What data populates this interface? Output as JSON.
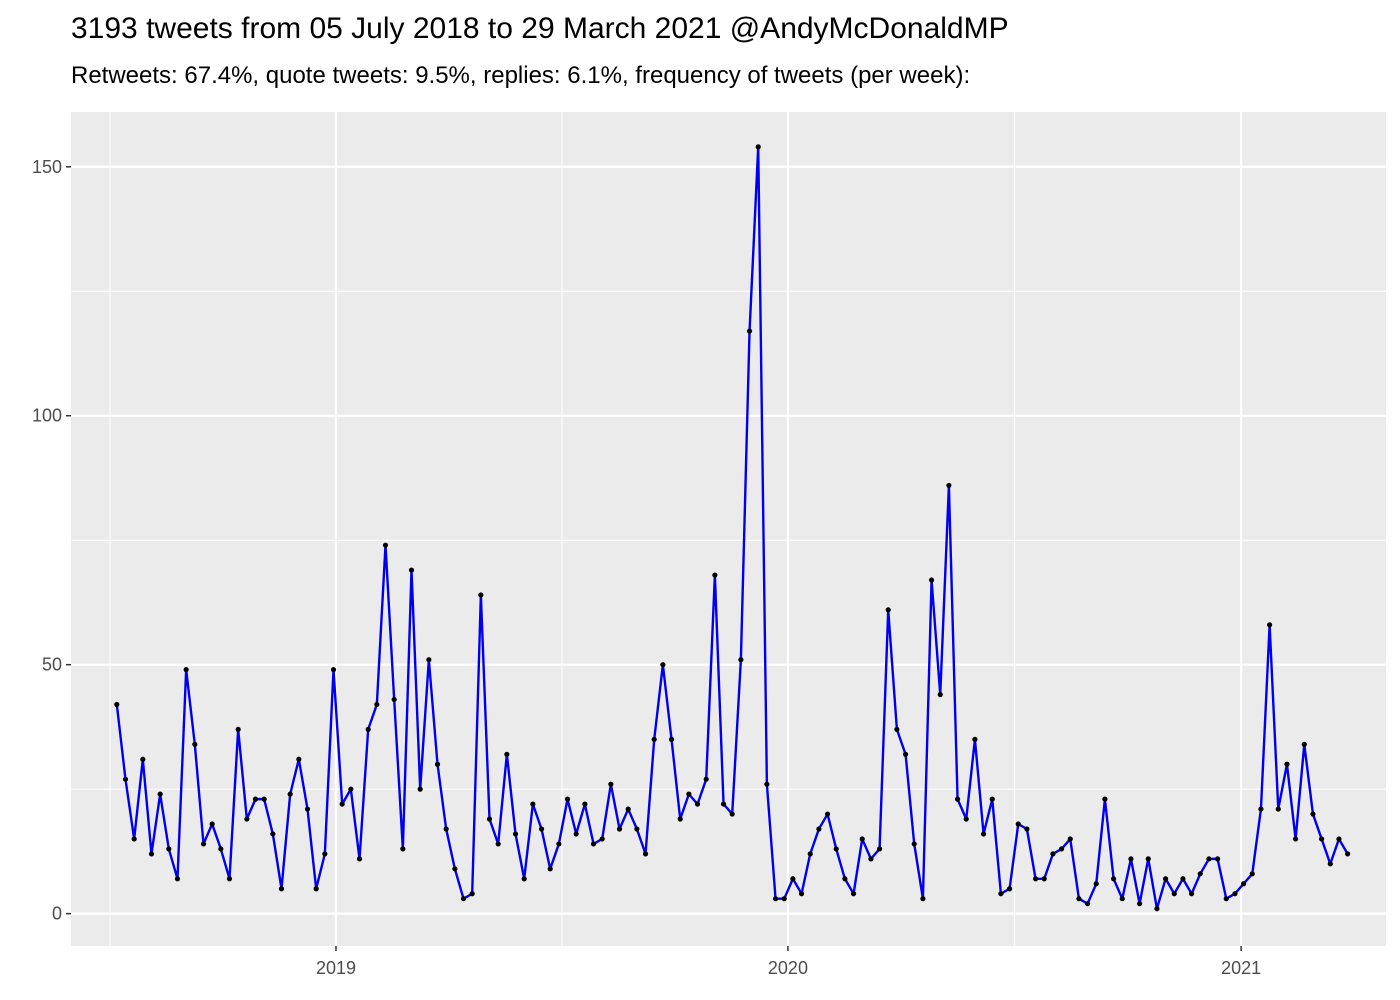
{
  "title": "3193 tweets from 05 July 2018 to 29 March 2021 @AndyMcDonaldMP",
  "subtitle": "Retweets: 67.4%, quote tweets: 9.5%, replies: 6.1%, frequency of tweets (per week):",
  "colors": {
    "panel_background": "#ebebeb",
    "grid": "#ffffff",
    "line": "#0000ee",
    "points": "#000000",
    "tick_text": "#4d4d4d"
  },
  "chart_data": {
    "type": "line",
    "title": "3193 tweets from 05 July 2018 to 29 March 2021 @AndyMcDonaldMP",
    "subtitle": "Retweets: 67.4%, quote tweets: 9.5%, replies: 6.1%, frequency of tweets (per week):",
    "xlabel": "",
    "ylabel": "",
    "x_type": "date",
    "xlim": [
      "2018-06-01",
      "2021-04-28"
    ],
    "ylim": [
      -6.5,
      161
    ],
    "x_ticks": [
      "2019-01-01",
      "2020-01-01",
      "2021-01-01"
    ],
    "x_tick_labels": [
      "2019",
      "2020",
      "2021"
    ],
    "y_ticks": [
      0,
      50,
      100,
      150
    ],
    "y_tick_labels": [
      "0",
      "50",
      "100",
      "150"
    ],
    "grid": true,
    "legend": "none",
    "x": [
      "2018-07-08",
      "2018-07-15",
      "2018-07-22",
      "2018-07-29",
      "2018-08-05",
      "2018-08-12",
      "2018-08-19",
      "2018-08-26",
      "2018-09-02",
      "2018-09-09",
      "2018-09-16",
      "2018-09-23",
      "2018-09-30",
      "2018-10-07",
      "2018-10-14",
      "2018-10-21",
      "2018-10-28",
      "2018-11-04",
      "2018-11-11",
      "2018-11-18",
      "2018-11-25",
      "2018-12-02",
      "2018-12-09",
      "2018-12-16",
      "2018-12-23",
      "2018-12-30",
      "2019-01-06",
      "2019-01-13",
      "2019-01-20",
      "2019-01-27",
      "2019-02-03",
      "2019-02-10",
      "2019-02-17",
      "2019-02-24",
      "2019-03-03",
      "2019-03-10",
      "2019-03-17",
      "2019-03-24",
      "2019-03-31",
      "2019-04-07",
      "2019-04-14",
      "2019-04-21",
      "2019-04-28",
      "2019-05-05",
      "2019-05-12",
      "2019-05-19",
      "2019-05-26",
      "2019-06-02",
      "2019-06-09",
      "2019-06-16",
      "2019-06-23",
      "2019-06-30",
      "2019-07-07",
      "2019-07-14",
      "2019-07-21",
      "2019-07-28",
      "2019-08-04",
      "2019-08-11",
      "2019-08-18",
      "2019-08-25",
      "2019-09-01",
      "2019-09-08",
      "2019-09-15",
      "2019-09-22",
      "2019-09-29",
      "2019-10-06",
      "2019-10-13",
      "2019-10-20",
      "2019-10-27",
      "2019-11-03",
      "2019-11-10",
      "2019-11-17",
      "2019-11-24",
      "2019-12-01",
      "2019-12-08",
      "2019-12-15",
      "2019-12-22",
      "2019-12-29",
      "2020-01-05",
      "2020-01-12",
      "2020-01-19",
      "2020-01-26",
      "2020-02-02",
      "2020-02-09",
      "2020-02-16",
      "2020-02-23",
      "2020-03-01",
      "2020-03-08",
      "2020-03-15",
      "2020-03-22",
      "2020-03-29",
      "2020-04-05",
      "2020-04-12",
      "2020-04-19",
      "2020-04-26",
      "2020-05-03",
      "2020-05-10",
      "2020-05-17",
      "2020-05-24",
      "2020-05-31",
      "2020-06-07",
      "2020-06-14",
      "2020-06-21",
      "2020-06-28",
      "2020-07-05",
      "2020-07-12",
      "2020-07-19",
      "2020-07-26",
      "2020-08-02",
      "2020-08-09",
      "2020-08-16",
      "2020-08-23",
      "2020-08-30",
      "2020-09-06",
      "2020-09-13",
      "2020-09-20",
      "2020-09-27",
      "2020-10-04",
      "2020-10-11",
      "2020-10-18",
      "2020-10-25",
      "2020-11-01",
      "2020-11-08",
      "2020-11-15",
      "2020-11-22",
      "2020-11-29",
      "2020-12-06",
      "2020-12-13",
      "2020-12-20",
      "2020-12-27",
      "2021-01-03",
      "2021-01-10",
      "2021-01-17",
      "2021-01-24",
      "2021-01-31",
      "2021-02-07",
      "2021-02-14",
      "2021-02-21",
      "2021-02-28",
      "2021-03-07",
      "2021-03-14",
      "2021-03-21",
      "2021-03-28"
    ],
    "series": [
      {
        "values": [
          42,
          27,
          15,
          31,
          12,
          24,
          13,
          7,
          49,
          34,
          14,
          18,
          13,
          7,
          37,
          19,
          23,
          23,
          16,
          5,
          24,
          31,
          21,
          5,
          12,
          49,
          22,
          25,
          11,
          37,
          42,
          74,
          43,
          13,
          69,
          25,
          51,
          30,
          17,
          9,
          3,
          4,
          64,
          19,
          14,
          32,
          16,
          7,
          22,
          17,
          9,
          14,
          23,
          16,
          22,
          14,
          15,
          26,
          17,
          21,
          17,
          12,
          35,
          50,
          35,
          19,
          24,
          22,
          27,
          68,
          22,
          20,
          51,
          117,
          154,
          26,
          3,
          3,
          7,
          4,
          12,
          17,
          20,
          13,
          7,
          4,
          15,
          11,
          13,
          61,
          37,
          32,
          14,
          3,
          67,
          44,
          86,
          23,
          19,
          35,
          16,
          23,
          4,
          5,
          18,
          17,
          7,
          7,
          12,
          13,
          15,
          3,
          2,
          6,
          23,
          7,
          3,
          11,
          2,
          11,
          1,
          7,
          4,
          7,
          4,
          8,
          11,
          11,
          3,
          4,
          6,
          8,
          21,
          58,
          21,
          30,
          15,
          34,
          20,
          15,
          10,
          15,
          12
        ]
      }
    ]
  }
}
